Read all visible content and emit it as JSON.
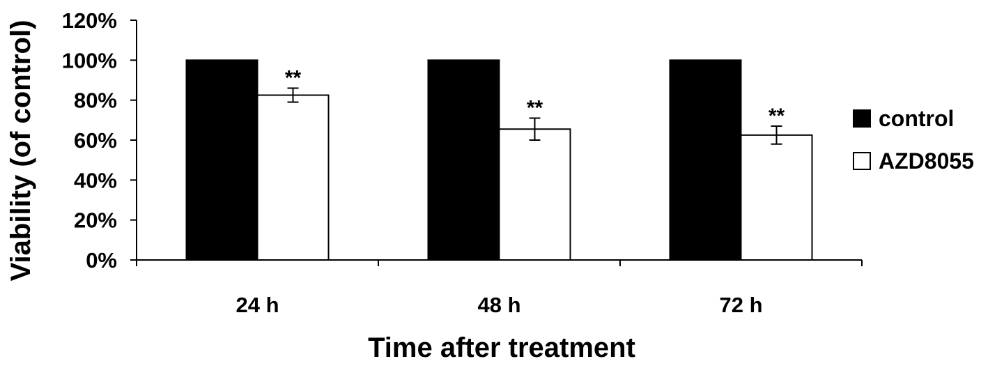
{
  "chart_data": {
    "type": "bar",
    "title": "",
    "xlabel": "Time after treatment",
    "ylabel": "Viability (of control)",
    "categories": [
      "24 h",
      "48 h",
      "72 h"
    ],
    "ylim": [
      0,
      120
    ],
    "yticks": [
      0,
      20,
      40,
      60,
      80,
      100,
      120
    ],
    "ytick_labels": [
      "0%",
      "20%",
      "40%",
      "60%",
      "80%",
      "100%",
      "120%"
    ],
    "grid": false,
    "legend_position": "right",
    "series": [
      {
        "name": "control",
        "color": "#000000",
        "values": [
          100,
          100,
          100
        ],
        "errors": [
          0,
          0,
          0
        ],
        "labels": [
          "",
          "",
          ""
        ]
      },
      {
        "name": "AZD8055",
        "color": "#ffffff",
        "values": [
          82.5,
          65.5,
          62.5
        ],
        "errors": [
          3.5,
          5.5,
          4.5
        ],
        "labels": [
          "**",
          "**",
          "**"
        ]
      }
    ]
  }
}
